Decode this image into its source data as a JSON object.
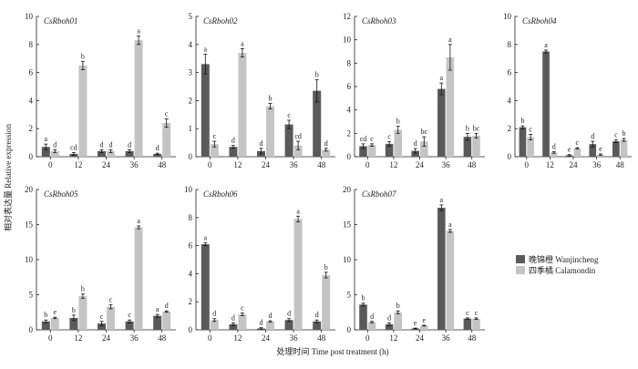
{
  "figure": {
    "ylabel": "相对表达量 Relative expression",
    "xlabel": "处理时间 Time post treatment (h)"
  },
  "legend": [
    {
      "name": "晚锦橙 Wanjincheng",
      "color": "#5a5a5a"
    },
    {
      "name": "四季橘 Calamondin",
      "color": "#c4c4c4"
    }
  ],
  "chart_data": [
    {
      "type": "bar",
      "title": "CsRboh01",
      "categories": [
        "0",
        "12",
        "24",
        "36",
        "48"
      ],
      "ylim": [
        0,
        10
      ],
      "yticks": [
        0,
        2,
        4,
        6,
        8,
        10
      ],
      "series": [
        {
          "name": "晚锦橙 Wanjincheng",
          "values": [
            0.7,
            0.2,
            0.4,
            0.4,
            0.2
          ],
          "errors": [
            0.2,
            0.1,
            0.1,
            0.1,
            0.05
          ],
          "labels": [
            "a",
            "cd",
            "d",
            "d",
            "d"
          ]
        },
        {
          "name": "四季橘 Calamondin",
          "values": [
            0.4,
            6.5,
            0.4,
            8.3,
            2.4
          ],
          "errors": [
            0.1,
            0.3,
            0.1,
            0.3,
            0.3
          ],
          "labels": [
            "d",
            "b",
            "d",
            "a",
            "c"
          ]
        }
      ]
    },
    {
      "type": "bar",
      "title": "CsRboh02",
      "categories": [
        "0",
        "12",
        "24",
        "36",
        "48"
      ],
      "ylim": [
        0,
        5
      ],
      "yticks": [
        0,
        1,
        2,
        3,
        4,
        5
      ],
      "series": [
        {
          "name": "晚锦橙 Wanjincheng",
          "values": [
            3.3,
            0.35,
            0.2,
            1.15,
            2.35
          ],
          "errors": [
            0.35,
            0.05,
            0.1,
            0.15,
            0.4
          ],
          "labels": [
            "a",
            "d",
            "d",
            "c",
            "b"
          ]
        },
        {
          "name": "四季橘 Calamondin",
          "values": [
            0.45,
            3.7,
            1.8,
            0.4,
            0.25
          ],
          "errors": [
            0.1,
            0.15,
            0.1,
            0.15,
            0.05
          ],
          "labels": [
            "c",
            "a",
            "b",
            "cd",
            "d"
          ]
        }
      ]
    },
    {
      "type": "bar",
      "title": "CsRboh03",
      "categories": [
        "0",
        "12",
        "24",
        "36",
        "48"
      ],
      "ylim": [
        0,
        12
      ],
      "yticks": [
        0,
        2,
        4,
        6,
        8,
        10,
        12
      ],
      "series": [
        {
          "name": "晚锦橙 Wanjincheng",
          "values": [
            0.9,
            1.1,
            0.5,
            5.8,
            1.7
          ],
          "errors": [
            0.2,
            0.2,
            0.2,
            0.5,
            0.3
          ],
          "labels": [
            "cd",
            "c",
            "d",
            "a",
            "b"
          ]
        },
        {
          "name": "四季橘 Calamondin",
          "values": [
            1.0,
            2.3,
            1.3,
            8.5,
            1.8
          ],
          "errors": [
            0.1,
            0.3,
            0.4,
            1.1,
            0.2
          ],
          "labels": [
            "c",
            "b",
            "bc",
            "a",
            "bc"
          ]
        }
      ]
    },
    {
      "type": "bar",
      "title": "CsRboh04",
      "categories": [
        "0",
        "12",
        "24",
        "36",
        "48"
      ],
      "ylim": [
        0,
        10
      ],
      "yticks": [
        0,
        2,
        4,
        6,
        8,
        10
      ],
      "series": [
        {
          "name": "晚锦橙 Wanjincheng",
          "values": [
            2.1,
            7.5,
            0.1,
            0.9,
            1.1
          ],
          "errors": [
            0.1,
            0.1,
            0.05,
            0.2,
            0.1
          ],
          "labels": [
            "b",
            "a",
            "e",
            "d",
            "c"
          ]
        },
        {
          "name": "四季橘 Calamondin",
          "values": [
            1.4,
            0.3,
            0.6,
            0.15,
            1.2
          ],
          "errors": [
            0.2,
            0.05,
            0.05,
            0.05,
            0.1
          ],
          "labels": [
            "c",
            "d",
            "c",
            "e",
            "b"
          ]
        }
      ]
    },
    {
      "type": "bar",
      "title": "CsRboh05",
      "categories": [
        "0",
        "12",
        "24",
        "36",
        "48"
      ],
      "ylim": [
        0,
        20
      ],
      "yticks": [
        0,
        5,
        10,
        15,
        20
      ],
      "series": [
        {
          "name": "晚锦橙 Wanjincheng",
          "values": [
            1.2,
            1.7,
            0.9,
            1.2,
            2.0
          ],
          "errors": [
            0.2,
            0.4,
            0.3,
            0.2,
            0.2
          ],
          "labels": [
            "b",
            "b",
            "c",
            "c",
            "a"
          ]
        },
        {
          "name": "四季橘 Calamondin",
          "values": [
            1.7,
            4.8,
            3.3,
            14.6,
            2.6
          ],
          "errors": [
            0.1,
            0.3,
            0.3,
            0.2,
            0.1
          ],
          "labels": [
            "e",
            "b",
            "c",
            "a",
            "d"
          ]
        }
      ]
    },
    {
      "type": "bar",
      "title": "CsRboh06",
      "categories": [
        "0",
        "12",
        "24",
        "36",
        "48"
      ],
      "ylim": [
        0,
        10
      ],
      "yticks": [
        0,
        2,
        4,
        6,
        8,
        10
      ],
      "series": [
        {
          "name": "晚锦橙 Wanjincheng",
          "values": [
            6.1,
            0.4,
            0.1,
            0.7,
            0.6
          ],
          "errors": [
            0.1,
            0.1,
            0.05,
            0.1,
            0.1
          ],
          "labels": [
            "a",
            "d",
            "d",
            "d",
            "d"
          ]
        },
        {
          "name": "四季橘 Calamondin",
          "values": [
            0.7,
            1.1,
            0.6,
            7.9,
            3.9
          ],
          "errors": [
            0.1,
            0.1,
            0.05,
            0.2,
            0.2
          ],
          "labels": [
            "d",
            "c",
            "d",
            "a",
            "b"
          ]
        }
      ]
    },
    {
      "type": "bar",
      "title": "CsRboh07",
      "categories": [
        "0",
        "12",
        "24",
        "36",
        "48"
      ],
      "ylim": [
        0,
        20
      ],
      "yticks": [
        0,
        5,
        10,
        15,
        20
      ],
      "series": [
        {
          "name": "晚锦橙 Wanjincheng",
          "values": [
            3.6,
            0.8,
            0.2,
            17.4,
            1.6
          ],
          "errors": [
            0.2,
            0.2,
            0.05,
            0.4,
            0.1
          ],
          "labels": [
            "b",
            "d",
            "e",
            "a",
            "c"
          ]
        },
        {
          "name": "四季橘 Calamondin",
          "values": [
            1.1,
            2.5,
            0.6,
            14.1,
            1.6
          ],
          "errors": [
            0.1,
            0.2,
            0.05,
            0.2,
            0.1
          ],
          "labels": [
            "d",
            "b",
            "e",
            "a",
            "c"
          ]
        }
      ]
    }
  ]
}
